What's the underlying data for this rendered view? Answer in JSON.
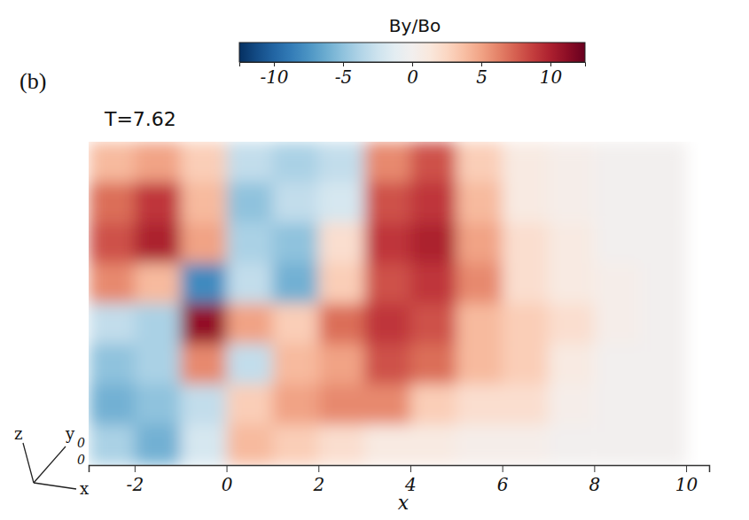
{
  "chart_data": {
    "type": "heatmap",
    "title": "T=7.62",
    "annotations": [
      "(b)",
      "z",
      "y",
      "x",
      "0",
      "0"
    ],
    "x_label": "x",
    "xlim": [
      -3,
      10.5
    ],
    "xticks": [
      -2,
      0,
      2,
      4,
      6,
      8,
      10
    ],
    "tick_labels": "x",
    "x_edges": [
      -3,
      -2,
      -1,
      0,
      1,
      2,
      3,
      4,
      5,
      6,
      7,
      8,
      9,
      10
    ],
    "cells": [
      [
        4,
        5,
        3,
        -3,
        -4,
        -3,
        6,
        8,
        3,
        1,
        0.5,
        0,
        0
      ],
      [
        7,
        9,
        4,
        -5,
        -3,
        -2,
        8,
        9,
        4,
        1,
        0.5,
        0,
        0
      ],
      [
        8,
        10,
        5,
        -4,
        -5,
        2,
        9,
        10,
        5,
        2,
        1,
        0,
        0
      ],
      [
        6,
        4,
        -8,
        -3,
        -6,
        3,
        8,
        9,
        6,
        2,
        1,
        0.5,
        0
      ],
      [
        -3,
        -4,
        11,
        5,
        3,
        7,
        9,
        8,
        4,
        3,
        2,
        0.5,
        0
      ],
      [
        -5,
        -4,
        6,
        -3,
        4,
        5,
        8,
        7,
        4,
        3,
        1,
        0,
        0
      ],
      [
        -6,
        -5,
        -3,
        3,
        5,
        6,
        6,
        3,
        2,
        2,
        0.5,
        0,
        0
      ],
      [
        -4,
        -6,
        -2,
        4,
        3,
        2,
        1,
        1,
        0.5,
        0.5,
        0,
        0,
        0
      ]
    ],
    "colorbar": {
      "label": "By/Bo",
      "lim": [
        -12.5,
        12.5
      ],
      "ticks": [
        -10,
        -5,
        0,
        5,
        10
      ]
    }
  }
}
